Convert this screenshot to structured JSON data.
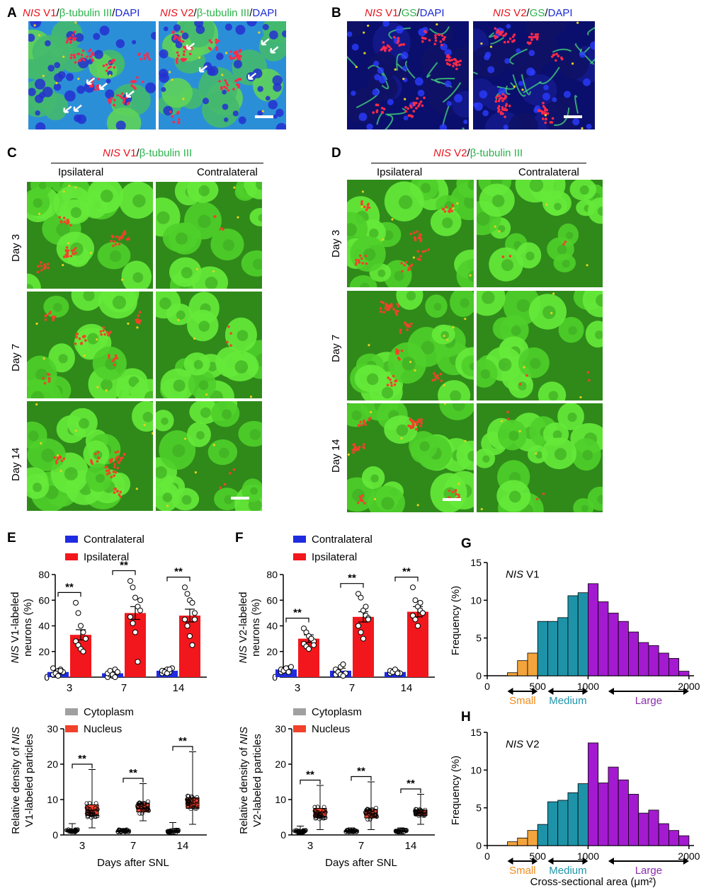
{
  "panels": {
    "A": {
      "letter": "A",
      "left": {
        "nis": "NIS",
        "v": " V1",
        "sep1": "/",
        "marker": "β-tubulin III",
        "sep2": "/",
        "dapi": "DAPI"
      },
      "right": {
        "nis": "NIS",
        "v": " V2",
        "sep1": "/",
        "marker": "β-tubulin III",
        "sep2": "/",
        "dapi": "DAPI"
      }
    },
    "B": {
      "letter": "B",
      "left": {
        "nis": "NIS",
        "v": " V1",
        "sep1": "/",
        "marker": "GS",
        "sep2": "/",
        "dapi": "DAPI"
      },
      "right": {
        "nis": "NIS",
        "v": " V2",
        "sep1": "/",
        "marker": "GS",
        "sep2": "/",
        "dapi": "DAPI"
      }
    },
    "C": {
      "letter": "C",
      "title": {
        "nis": "NIS",
        "v": " V1",
        "sep": "/",
        "marker": "β-tubulin III"
      },
      "columns": [
        "Ipsilateral",
        "Contralateral"
      ],
      "rows": [
        "Day 3",
        "Day 7",
        "Day 14"
      ]
    },
    "D": {
      "letter": "D",
      "title": {
        "nis": "NIS",
        "v": " V2",
        "sep": "/",
        "marker": "β-tubulin III"
      },
      "columns": [
        "Ipsilateral",
        "Contralateral"
      ],
      "rows": [
        "Day 3",
        "Day 7",
        "Day 14"
      ]
    },
    "E": {
      "letter": "E"
    },
    "F": {
      "letter": "F"
    },
    "G": {
      "letter": "G"
    },
    "H": {
      "letter": "H"
    }
  },
  "colors": {
    "contralateral": "#1f2be0",
    "ipsilateral": "#f2171c",
    "cytoplasm": "#a0a0a0",
    "nucleus": "#f2412a",
    "small": "#f4a43c",
    "medium": "#1e93a8",
    "large": "#a31ad0",
    "small_text": "#f08a1c",
    "medium_text": "#1e93a8",
    "large_text": "#8a2bb0"
  },
  "chart_data": [
    {
      "id": "E-top",
      "type": "bar",
      "categories": [
        "3",
        "7",
        "14"
      ],
      "series": [
        {
          "name": "Contralateral",
          "values": [
            4,
            3,
            5
          ],
          "sem": [
            1.2,
            1.5,
            0.8
          ]
        },
        {
          "name": "Ipsilateral",
          "values": [
            33,
            50,
            48
          ],
          "sem": [
            4,
            5,
            5
          ]
        }
      ],
      "points": {
        "Contralateral": [
          [
            2,
            3,
            5,
            6,
            4,
            7,
            3,
            1,
            5
          ],
          [
            0,
            2,
            1,
            6,
            4,
            3,
            5,
            2,
            0
          ],
          [
            3,
            5,
            6,
            4,
            7,
            5,
            4,
            3,
            6
          ]
        ],
        "Ipsilateral": [
          [
            58,
            50,
            40,
            35,
            30,
            28,
            25,
            22,
            20,
            30
          ],
          [
            75,
            70,
            62,
            55,
            52,
            47,
            42,
            35,
            12,
            60
          ],
          [
            70,
            65,
            60,
            58,
            50,
            45,
            40,
            32,
            25,
            45
          ]
        ]
      },
      "significance": [
        "**",
        "**",
        "**"
      ],
      "ylabel_italic": "NIS",
      "ylabel_line1": " V1-labeled",
      "ylabel_line2": "neurons (%)",
      "ylim": [
        0,
        80
      ],
      "yticks": [
        "0",
        "20",
        "40",
        "60",
        "80"
      ]
    },
    {
      "id": "E-bottom",
      "type": "box",
      "categories": [
        "3",
        "7",
        "14"
      ],
      "series": [
        {
          "name": "Cytoplasm",
          "box": [
            [
              0.5,
              0.9,
              1.2,
              1.5,
              3.2
            ],
            [
              0.5,
              0.9,
              1.1,
              1.4,
              1.8
            ],
            [
              0.1,
              0.6,
              0.9,
              1.3,
              3.5
            ]
          ]
        },
        {
          "name": "Nucleus",
          "box": [
            [
              2.0,
              5.5,
              7.0,
              8.5,
              18.5
            ],
            [
              4.0,
              6.5,
              7.5,
              9.0,
              14.5
            ],
            [
              3.0,
              7.5,
              9.0,
              10.5,
              23.5
            ]
          ]
        }
      ],
      "significance": [
        "**",
        "**",
        "**"
      ],
      "ylabel_line1_a": "Relative density of ",
      "ylabel_italic": "NIS",
      "ylabel_line2": "V1-labeled particles",
      "xlabel": "Days after SNL",
      "ylim": [
        0,
        30
      ],
      "yticks": [
        "0",
        "10",
        "20",
        "30"
      ]
    },
    {
      "id": "F-top",
      "type": "bar",
      "categories": [
        "3",
        "7",
        "14"
      ],
      "series": [
        {
          "name": "Contralateral",
          "values": [
            6,
            5,
            4
          ],
          "sem": [
            1.0,
            2.0,
            0.8
          ]
        },
        {
          "name": "Ipsilateral",
          "values": [
            30,
            47,
            51
          ],
          "sem": [
            3,
            4,
            4
          ]
        }
      ],
      "points": {
        "Contralateral": [
          [
            4,
            5,
            6,
            7,
            8,
            6,
            5,
            7,
            4
          ],
          [
            2,
            5,
            8,
            10,
            3,
            6,
            4,
            2,
            1
          ],
          [
            3,
            4,
            5,
            4,
            3,
            5,
            4,
            6,
            3
          ]
        ],
        "Ipsilateral": [
          [
            38,
            35,
            32,
            30,
            28,
            26,
            24,
            22,
            30,
            25
          ],
          [
            65,
            62,
            52,
            48,
            46,
            40,
            35,
            30,
            55,
            45
          ],
          [
            70,
            60,
            55,
            52,
            50,
            48,
            45,
            40,
            58,
            50
          ]
        ]
      },
      "significance": [
        "**",
        "**",
        "**"
      ],
      "ylabel_italic": "NIS",
      "ylabel_line1": " V2-labeled",
      "ylabel_line2": "neurons (%)",
      "ylim": [
        0,
        80
      ],
      "yticks": [
        "0",
        "20",
        "40",
        "60",
        "80"
      ]
    },
    {
      "id": "F-bottom",
      "type": "box",
      "categories": [
        "3",
        "7",
        "14"
      ],
      "series": [
        {
          "name": "Cytoplasm",
          "box": [
            [
              0.2,
              0.8,
              1.0,
              1.3,
              2.5
            ],
            [
              0.4,
              0.9,
              1.1,
              1.3,
              2.0
            ],
            [
              0.3,
              0.8,
              1.0,
              1.3,
              2.0
            ]
          ]
        },
        {
          "name": "Nucleus",
          "box": [
            [
              1.5,
              5.0,
              6.5,
              7.5,
              14.0
            ],
            [
              1.5,
              4.8,
              6.0,
              7.2,
              15.0
            ],
            [
              3.0,
              5.5,
              6.2,
              7.0,
              11.5
            ]
          ]
        }
      ],
      "significance": [
        "**",
        "**",
        "**"
      ],
      "ylabel_line1_a": "Relative density of ",
      "ylabel_italic": "NIS",
      "ylabel_line2": "V2-labeled particles",
      "xlabel": "Days after SNL",
      "ylim": [
        0,
        30
      ],
      "yticks": [
        "0",
        "10",
        "20",
        "30"
      ]
    },
    {
      "id": "G",
      "type": "histogram",
      "label_italic": "NIS",
      "label_rest": " V1",
      "bin_width": 100,
      "bin_starts": [
        200,
        300,
        400,
        500,
        600,
        700,
        800,
        900,
        1000,
        1100,
        1200,
        1300,
        1400,
        1500,
        1600,
        1700,
        1800,
        1900
      ],
      "values": [
        0.4,
        2.0,
        3.0,
        7.2,
        7.2,
        7.7,
        10.6,
        11.0,
        12.2,
        9.8,
        8.3,
        7.2,
        5.8,
        4.4,
        4.0,
        3.0,
        2.3,
        0.6
      ],
      "classes": [
        "small",
        "small",
        "small",
        "medium",
        "medium",
        "medium",
        "medium",
        "medium",
        "large",
        "large",
        "large",
        "large",
        "large",
        "large",
        "large",
        "large",
        "large",
        "large"
      ],
      "ylabel": "Frequency (%)",
      "ylim": [
        0,
        15
      ],
      "yticks": [
        "0",
        "5",
        "10",
        "15"
      ],
      "xticks": [
        "0",
        "500",
        "1000",
        "2000"
      ],
      "size_labels": [
        "Small",
        "Medium",
        "Large"
      ]
    },
    {
      "id": "H",
      "type": "histogram",
      "label_italic": "NIS",
      "label_rest": " V2",
      "bin_width": 100,
      "bin_starts": [
        200,
        300,
        400,
        500,
        600,
        700,
        800,
        900,
        1000,
        1100,
        1200,
        1300,
        1400,
        1500,
        1600,
        1700,
        1800,
        1900
      ],
      "values": [
        0.5,
        1.0,
        2.0,
        2.8,
        5.8,
        6.0,
        7.0,
        8.2,
        13.6,
        8.3,
        10.4,
        8.7,
        6.8,
        4.3,
        4.7,
        2.9,
        2.0,
        1.3
      ],
      "classes": [
        "small",
        "small",
        "small",
        "medium",
        "medium",
        "medium",
        "medium",
        "medium",
        "large",
        "large",
        "large",
        "large",
        "large",
        "large",
        "large",
        "large",
        "large",
        "large"
      ],
      "ylabel": "Frequency (%)",
      "xlabel": "Cross-sectional area (μm²)",
      "ylim": [
        0,
        15
      ],
      "yticks": [
        "0",
        "5",
        "10",
        "15"
      ],
      "xticks": [
        "0",
        "500",
        "1000",
        "2000"
      ],
      "size_labels": [
        "Small",
        "Medium",
        "Large"
      ]
    }
  ]
}
